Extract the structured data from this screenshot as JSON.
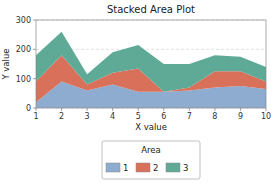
{
  "chart_data": {
    "type": "area",
    "stacked": true,
    "title": "Stacked Area Plot",
    "x_label": "X value",
    "y_label": "Y value",
    "x": [
      1,
      2,
      3,
      4,
      5,
      6,
      7,
      8,
      9,
      10
    ],
    "series": [
      {
        "name": "1",
        "color": "#8eacd0",
        "values": [
          20,
          90,
          60,
          80,
          55,
          55,
          60,
          70,
          75,
          65
        ]
      },
      {
        "name": "2",
        "color": "#d9705a",
        "values": [
          70,
          90,
          20,
          40,
          80,
          0,
          10,
          55,
          50,
          25
        ]
      },
      {
        "name": "3",
        "color": "#5faa96",
        "values": [
          90,
          80,
          35,
          70,
          80,
          95,
          80,
          55,
          50,
          50
        ]
      }
    ],
    "legend_title": "Area",
    "legend": "bottom",
    "xlim": [
      1,
      10
    ],
    "xticks": [
      1,
      2,
      3,
      4,
      5,
      6,
      7,
      8,
      9,
      10
    ],
    "ylim": [
      0,
      300
    ],
    "yticks": [
      0,
      100,
      200,
      300
    ],
    "grid": true
  }
}
